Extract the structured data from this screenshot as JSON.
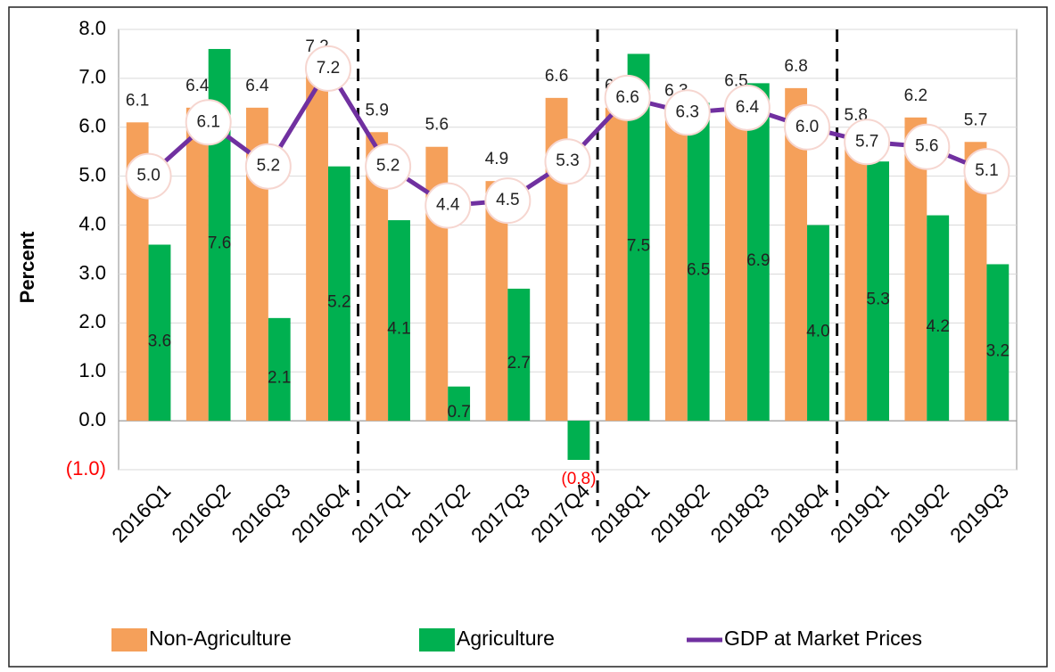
{
  "chart_data": {
    "type": "bar-line",
    "y_label": "Percent",
    "categories": [
      "2016Q1",
      "2016Q2",
      "2016Q3",
      "2016Q4",
      "2017Q1",
      "2017Q2",
      "2017Q3",
      "2017Q4",
      "2018Q1",
      "2018Q2",
      "2018Q3",
      "2018Q4",
      "2019Q1",
      "2019Q2",
      "2019Q3"
    ],
    "series": [
      {
        "name": "Non-Agriculture",
        "kind": "bar",
        "color": "#f5a05a",
        "values": [
          6.1,
          6.4,
          6.4,
          7.2,
          5.9,
          5.6,
          4.9,
          6.6,
          6.4,
          6.3,
          6.5,
          6.8,
          5.8,
          6.2,
          5.7
        ],
        "value_labels": [
          "6.1",
          "6.4",
          "6.4",
          "7.2",
          "5.9",
          "5.6",
          "4.9",
          "6.6",
          "6.4",
          "6.3",
          "6.5",
          "6.8",
          "5.8",
          "6.2",
          "5.7"
        ]
      },
      {
        "name": "Agriculture",
        "kind": "bar",
        "color": "#00b050",
        "values": [
          3.6,
          7.6,
          2.1,
          5.2,
          4.1,
          0.7,
          2.7,
          -0.8,
          7.5,
          6.5,
          6.9,
          4.0,
          5.3,
          4.2,
          3.2
        ],
        "value_labels": [
          "3.6",
          "7.6",
          "2.1",
          "5.2",
          "4.1",
          "0.7",
          "2.7",
          "(0.8)",
          "7.5",
          "6.5",
          "6.9",
          "4.0",
          "5.3",
          "4.2",
          "3.2"
        ]
      },
      {
        "name": "GDP at Market Prices",
        "kind": "line",
        "color": "#7030a0",
        "values": [
          5.0,
          6.1,
          5.2,
          7.2,
          5.2,
          4.4,
          4.5,
          5.3,
          6.6,
          6.3,
          6.4,
          6.0,
          5.7,
          5.6,
          5.1
        ],
        "value_labels": [
          "5.0",
          "6.1",
          "5.2",
          "7.2",
          "5.2",
          "4.4",
          "4.5",
          "5.3",
          "6.6",
          "6.3",
          "6.4",
          "6.0",
          "5.7",
          "5.6",
          "5.1"
        ]
      }
    ],
    "ylim": [
      -1,
      8
    ],
    "yticks": [
      {
        "value": -1,
        "label": "(1.0)"
      },
      {
        "value": 0,
        "label": "0.0"
      },
      {
        "value": 1,
        "label": "1.0"
      },
      {
        "value": 2,
        "label": "2.0"
      },
      {
        "value": 3,
        "label": "3.0"
      },
      {
        "value": 4,
        "label": "4.0"
      },
      {
        "value": 5,
        "label": "5.0"
      },
      {
        "value": 6,
        "label": "6.0"
      },
      {
        "value": 7,
        "label": "7.0"
      },
      {
        "value": 8,
        "label": "8.0"
      }
    ],
    "negative_color": "#ff0000",
    "grid": true
  }
}
